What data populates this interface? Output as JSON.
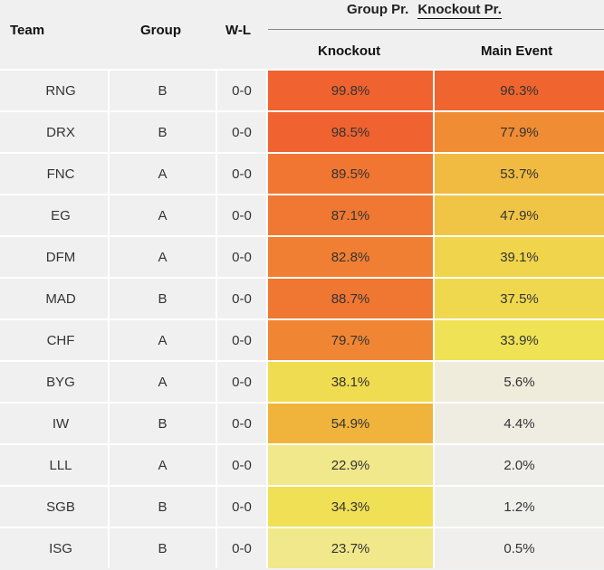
{
  "header": {
    "team": "Team",
    "group": "Group",
    "wl": "W-L",
    "tabs": [
      {
        "label": "Group Pr.",
        "active": false
      },
      {
        "label": "Knockout Pr.",
        "active": true
      }
    ],
    "knockout": "Knockout",
    "main_event": "Main Event"
  },
  "rows": [
    {
      "team": "RNG",
      "group": "B",
      "wl": "0-0",
      "knockout": "99.8%",
      "main_event": "96.3%",
      "knockout_color": "#f0622f",
      "main_event_color": "#f0652f"
    },
    {
      "team": "DRX",
      "group": "B",
      "wl": "0-0",
      "knockout": "98.5%",
      "main_event": "77.9%",
      "knockout_color": "#f06330",
      "main_event_color": "#f08c33"
    },
    {
      "team": "FNC",
      "group": "A",
      "wl": "0-0",
      "knockout": "89.5%",
      "main_event": "53.7%",
      "knockout_color": "#f07632",
      "main_event_color": "#f0bb40"
    },
    {
      "team": "EG",
      "group": "A",
      "wl": "0-0",
      "knockout": "87.1%",
      "main_event": "47.9%",
      "knockout_color": "#f07832",
      "main_event_color": "#f0c545"
    },
    {
      "team": "DFM",
      "group": "A",
      "wl": "0-0",
      "knockout": "82.8%",
      "main_event": "39.1%",
      "knockout_color": "#f07f33",
      "main_event_color": "#f0d54c"
    },
    {
      "team": "MAD",
      "group": "B",
      "wl": "0-0",
      "knockout": "88.7%",
      "main_event": "37.5%",
      "knockout_color": "#f07732",
      "main_event_color": "#f0d84e"
    },
    {
      "team": "CHF",
      "group": "A",
      "wl": "0-0",
      "knockout": "79.7%",
      "main_event": "33.9%",
      "knockout_color": "#f08633",
      "main_event_color": "#f0e255"
    },
    {
      "team": "BYG",
      "group": "A",
      "wl": "0-0",
      "knockout": "38.1%",
      "main_event": "5.6%",
      "knockout_color": "#f0dc50",
      "main_event_color": "#efecdc"
    },
    {
      "team": "IW",
      "group": "B",
      "wl": "0-0",
      "knockout": "54.9%",
      "main_event": "4.4%",
      "knockout_color": "#f0b43d",
      "main_event_color": "#efede2"
    },
    {
      "team": "LLL",
      "group": "A",
      "wl": "0-0",
      "knockout": "22.9%",
      "main_event": "2.0%",
      "knockout_color": "#f0e88a",
      "main_event_color": "#efeeea"
    },
    {
      "team": "SGB",
      "group": "B",
      "wl": "0-0",
      "knockout": "34.3%",
      "main_event": "1.2%",
      "knockout_color": "#f0e055",
      "main_event_color": "#efefec"
    },
    {
      "team": "ISG",
      "group": "B",
      "wl": "0-0",
      "knockout": "23.7%",
      "main_event": "0.5%",
      "knockout_color": "#f0e88a",
      "main_event_color": "#f0efee"
    }
  ]
}
